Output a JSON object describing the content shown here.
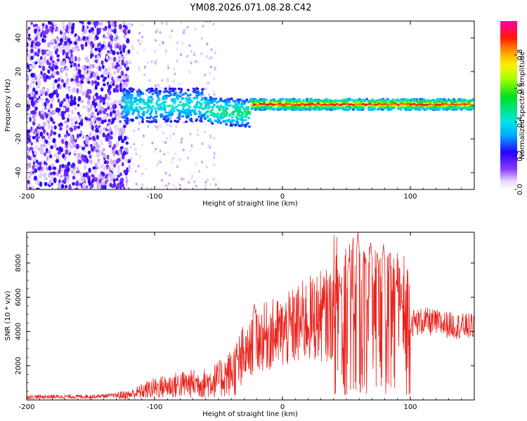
{
  "figure": {
    "title": "YM08.2026.071.08.28.C42"
  },
  "chart_data": [
    {
      "type": "heatmap",
      "name": "spectrogram",
      "xlabel": "Height of straight line (km)",
      "ylabel": "Frequency (Hz)",
      "xlim": [
        -200,
        150
      ],
      "ylim": [
        -50,
        50
      ],
      "xticks": [
        -200,
        -100,
        0,
        100
      ],
      "yticks": [
        -40,
        -20,
        0,
        20,
        40
      ],
      "colorbar": {
        "label": "Normalized spectral amplitude",
        "range": [
          0,
          1
        ],
        "ticks": [
          0.0,
          0.2,
          0.4,
          0.6,
          0.8
        ],
        "tick_labels": [
          "0.0",
          "0.2",
          "0.4",
          "0.6",
          "0.8"
        ]
      },
      "description_of_signal": [
        {
          "x_range": [
            -200,
            -120
          ],
          "frequency_band": [
            -50,
            50
          ],
          "amplitude": 0.12
        },
        {
          "x_range": [
            -120,
            -60
          ],
          "frequency_band": [
            -12,
            12
          ],
          "amplitude": 0.25
        },
        {
          "x_range": [
            -60,
            -25
          ],
          "frequency_band": [
            -12,
            6
          ],
          "amplitude": 0.35
        },
        {
          "x_range": [
            -25,
            150
          ],
          "frequency_band": [
            -4,
            4
          ],
          "amplitude": 0.75
        }
      ]
    },
    {
      "type": "line",
      "name": "snr",
      "xlabel": "Height of straight line (km)",
      "ylabel": "SNR (10 * v/v)",
      "xlim": [
        -200,
        150
      ],
      "ylim": [
        0,
        9800
      ],
      "xticks": [
        -200,
        -100,
        0,
        100
      ],
      "yticks": [
        2000,
        4000,
        6000,
        8000
      ],
      "color": "#e8241f",
      "envelope": {
        "x": [
          -200,
          -150,
          -120,
          -100,
          -80,
          -60,
          -50,
          -40,
          -30,
          -25,
          -20,
          -10,
          0,
          10,
          20,
          30,
          40,
          45,
          50,
          60,
          70,
          80,
          90,
          100,
          110,
          120,
          130,
          140,
          150
        ],
        "y": [
          180,
          200,
          300,
          700,
          900,
          1000,
          1200,
          1600,
          2400,
          3000,
          3500,
          3800,
          3900,
          4300,
          4700,
          4900,
          5000,
          5100,
          5000,
          4800,
          4700,
          4500,
          4500,
          4500,
          4600,
          4500,
          4400,
          4300,
          4300
        ]
      },
      "spikes": [
        {
          "x": -22,
          "y": 5600
        },
        {
          "x": 45,
          "y": 6800
        },
        {
          "x": 52,
          "y": 8300
        },
        {
          "x": 59,
          "y": 9800
        },
        {
          "x": 64,
          "y": 8800
        },
        {
          "x": 69,
          "y": 9200
        },
        {
          "x": 74,
          "y": 8600
        },
        {
          "x": 79,
          "y": 9100
        },
        {
          "x": 84,
          "y": 8000
        },
        {
          "x": 89,
          "y": 7000
        },
        {
          "x": 93,
          "y": 5800
        }
      ]
    }
  ]
}
